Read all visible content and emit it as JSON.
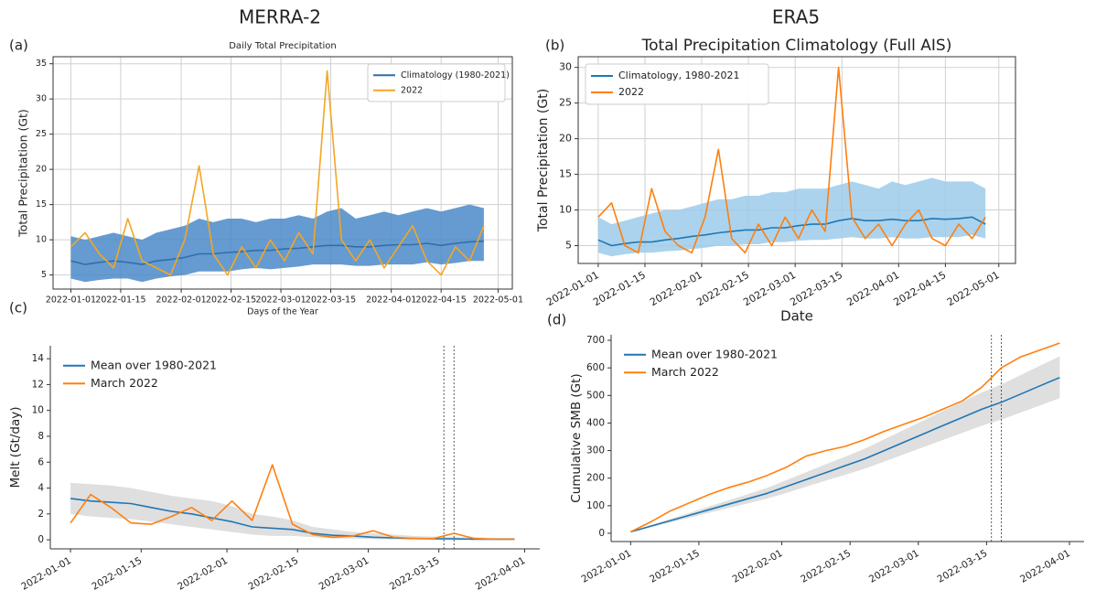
{
  "column_titles": [
    "MERRA-2",
    "ERA5"
  ],
  "chart_data": [
    {
      "type": "line",
      "panel": "(a)",
      "title": "Daily Total Precipitation",
      "xlabel": "Days of the Year",
      "ylabel": "Total Precipitation (Gt)",
      "x": [
        "2022-01-01",
        "2022-01-05",
        "2022-01-09",
        "2022-01-13",
        "2022-01-17",
        "2022-01-21",
        "2022-01-25",
        "2022-01-29",
        "2022-02-02",
        "2022-02-06",
        "2022-02-10",
        "2022-02-14",
        "2022-02-18",
        "2022-02-22",
        "2022-02-26",
        "2022-03-02",
        "2022-03-06",
        "2022-03-10",
        "2022-03-14",
        "2022-03-18",
        "2022-03-22",
        "2022-03-26",
        "2022-03-30",
        "2022-04-03",
        "2022-04-07",
        "2022-04-11",
        "2022-04-15",
        "2022-04-19",
        "2022-04-23",
        "2022-04-27"
      ],
      "series": [
        {
          "name": "Climatology (1980-2021)",
          "color": "#2f6fad",
          "values": [
            7,
            6.5,
            6.8,
            7,
            6.8,
            6.5,
            7,
            7.2,
            7.5,
            8,
            8,
            8.2,
            8.3,
            8.5,
            8.5,
            8.7,
            8.8,
            9,
            9.2,
            9.2,
            9,
            9,
            9.2,
            9.3,
            9.3,
            9.5,
            9.2,
            9.5,
            9.7,
            9.8
          ],
          "band": {
            "color": "#4a89c8",
            "lower": [
              4.5,
              4,
              4.3,
              4.5,
              4.5,
              4,
              4.5,
              4.8,
              5,
              5.5,
              5.5,
              5.5,
              5.8,
              6,
              5.8,
              6,
              6.2,
              6.5,
              6.5,
              6.5,
              6.3,
              6.3,
              6.5,
              6.5,
              6.5,
              6.8,
              6.5,
              6.7,
              7,
              7
            ],
            "upper": [
              10.5,
              10,
              10.5,
              11,
              10.5,
              10,
              11,
              11.5,
              12,
              13,
              12.5,
              13,
              13,
              12.5,
              13,
              13,
              13.5,
              13,
              14,
              14.5,
              13,
              13.5,
              14,
              13.5,
              14,
              14.5,
              14,
              14.5,
              15,
              14.5
            ]
          }
        },
        {
          "name": "2022",
          "color": "#f5a623",
          "values": [
            9,
            11,
            8,
            6,
            13,
            7,
            6,
            5,
            10,
            20.5,
            8,
            5,
            9,
            6,
            10,
            7,
            11,
            8,
            34,
            10,
            7,
            10,
            6,
            9,
            12,
            7,
            5,
            9,
            7,
            12
          ]
        }
      ],
      "xlim": [
        "2021-12-27",
        "2022-05-05"
      ],
      "xticks": [
        "2022-01-01",
        "2022-01-15",
        "2022-02-01",
        "2022-02-15",
        "2022-03-01",
        "2022-03-15",
        "2022-04-01",
        "2022-04-15",
        "2022-05-01"
      ],
      "ylim": [
        3,
        36
      ],
      "yticks": [
        5,
        10,
        15,
        20,
        25,
        30,
        35
      ],
      "grid": true,
      "legend": "upper right"
    },
    {
      "type": "line",
      "panel": "(b)",
      "title": "Total Precipitation Climatology (Full AIS)",
      "xlabel": "Date",
      "ylabel": "Total Precipitation (Gt)",
      "x": [
        "2022-01-01",
        "2022-01-05",
        "2022-01-09",
        "2022-01-13",
        "2022-01-17",
        "2022-01-21",
        "2022-01-25",
        "2022-01-29",
        "2022-02-02",
        "2022-02-06",
        "2022-02-10",
        "2022-02-14",
        "2022-02-18",
        "2022-02-22",
        "2022-02-26",
        "2022-03-02",
        "2022-03-06",
        "2022-03-10",
        "2022-03-14",
        "2022-03-18",
        "2022-03-22",
        "2022-03-26",
        "2022-03-30",
        "2022-04-03",
        "2022-04-07",
        "2022-04-11",
        "2022-04-15",
        "2022-04-19",
        "2022-04-23",
        "2022-04-27"
      ],
      "series": [
        {
          "name": "Climatology, 1980-2021",
          "color": "#1f77b4",
          "values": [
            5.8,
            5,
            5.3,
            5.5,
            5.5,
            5.8,
            6,
            6.3,
            6.5,
            6.8,
            7,
            7.2,
            7.2,
            7.5,
            7.5,
            7.8,
            8,
            8,
            8.5,
            8.8,
            8.5,
            8.5,
            8.7,
            8.5,
            8.5,
            8.8,
            8.7,
            8.8,
            9,
            8
          ],
          "band": {
            "color": "#9ccbea",
            "lower": [
              4,
              3.5,
              3.8,
              4,
              4,
              4.2,
              4.3,
              4.5,
              4.7,
              5,
              5,
              5.2,
              5.2,
              5.5,
              5.5,
              5.7,
              5.8,
              5.8,
              6,
              6.2,
              6,
              6,
              6.2,
              6,
              6,
              6.2,
              6.2,
              6.2,
              6.5,
              6
            ],
            "upper": [
              9,
              8,
              8.5,
              9,
              9.5,
              10,
              10,
              10.5,
              11,
              11.5,
              11.5,
              12,
              12,
              12.5,
              12.5,
              13,
              13,
              13,
              13.5,
              14,
              13.5,
              13,
              14,
              13.5,
              14,
              14.5,
              14,
              14,
              14,
              13
            ]
          }
        },
        {
          "name": "2022",
          "color": "#ff7f0e",
          "values": [
            9,
            11,
            5,
            4,
            13,
            7,
            5,
            4,
            9,
            18.5,
            6,
            4,
            8,
            5,
            9,
            6,
            10,
            7,
            30,
            9,
            6,
            8,
            5,
            8,
            10,
            6,
            5,
            8,
            6,
            9
          ]
        }
      ],
      "xlim": [
        "2021-12-26",
        "2022-05-06"
      ],
      "xticks": [
        "2022-01-01",
        "2022-01-15",
        "2022-02-01",
        "2022-02-15",
        "2022-03-01",
        "2022-03-15",
        "2022-04-01",
        "2022-04-15",
        "2022-05-01"
      ],
      "ylim": [
        2.5,
        31.5
      ],
      "yticks": [
        5,
        10,
        15,
        20,
        25,
        30
      ],
      "grid": true,
      "legend": "upper left"
    },
    {
      "type": "line",
      "panel": "(c)",
      "ylabel": "Melt (Gt/day)",
      "x": [
        "2022-01-01",
        "2022-01-05",
        "2022-01-09",
        "2022-01-13",
        "2022-01-17",
        "2022-01-21",
        "2022-01-25",
        "2022-01-29",
        "2022-02-02",
        "2022-02-06",
        "2022-02-10",
        "2022-02-14",
        "2022-02-18",
        "2022-02-22",
        "2022-02-26",
        "2022-03-02",
        "2022-03-06",
        "2022-03-10",
        "2022-03-14",
        "2022-03-18",
        "2022-03-22",
        "2022-03-26",
        "2022-03-30"
      ],
      "series": [
        {
          "name": "Mean over 1980-2021",
          "color": "#1f77b4",
          "values": [
            3.2,
            3.0,
            2.9,
            2.8,
            2.5,
            2.2,
            2.0,
            1.7,
            1.4,
            1.0,
            0.9,
            0.8,
            0.5,
            0.35,
            0.3,
            0.2,
            0.15,
            0.1,
            0.08,
            0.07,
            0.05,
            0.05,
            0.05
          ],
          "band": {
            "color": "#d9d9d9",
            "lower": [
              2.0,
              1.8,
              1.7,
              1.6,
              1.4,
              1.2,
              1.0,
              0.8,
              0.6,
              0.4,
              0.3,
              0.3,
              0.2,
              0.1,
              0.1,
              0.05,
              0.03,
              0.02,
              0.01,
              0.01,
              0,
              0,
              0
            ],
            "upper": [
              4.4,
              4.3,
              4.2,
              4.0,
              3.7,
              3.4,
              3.2,
              3.0,
              2.6,
              2.0,
              1.8,
              1.5,
              1.0,
              0.8,
              0.6,
              0.5,
              0.4,
              0.3,
              0.25,
              0.2,
              0.2,
              0.15,
              0.15
            ]
          }
        },
        {
          "name": "March 2022",
          "color": "#ff7f0e",
          "values": [
            1.3,
            3.5,
            2.5,
            1.3,
            1.2,
            1.8,
            2.5,
            1.5,
            3.0,
            1.5,
            5.8,
            1.2,
            0.4,
            0.2,
            0.3,
            0.7,
            0.2,
            0.1,
            0.1,
            0.5,
            0.1,
            0.05,
            0.05
          ]
        }
      ],
      "vlines": [
        "2022-03-16",
        "2022-03-18"
      ],
      "xlim": [
        "2021-12-28",
        "2022-04-04"
      ],
      "xticks": [
        "2022-01-01",
        "2022-01-15",
        "2022-02-01",
        "2022-02-15",
        "2022-03-01",
        "2022-03-15",
        "2022-04-01"
      ],
      "ylim": [
        -0.7,
        15
      ],
      "yticks": [
        0,
        2,
        4,
        6,
        8,
        10,
        12,
        14
      ],
      "grid": false,
      "legend": "upper left"
    },
    {
      "type": "line",
      "panel": "(d)",
      "ylabel": "Cumulative SMB (Gt)",
      "x": [
        "2022-01-01",
        "2022-01-05",
        "2022-01-09",
        "2022-01-13",
        "2022-01-17",
        "2022-01-21",
        "2022-01-25",
        "2022-01-29",
        "2022-02-02",
        "2022-02-06",
        "2022-02-10",
        "2022-02-14",
        "2022-02-18",
        "2022-02-22",
        "2022-02-26",
        "2022-03-02",
        "2022-03-06",
        "2022-03-10",
        "2022-03-14",
        "2022-03-18",
        "2022-03-22",
        "2022-03-26",
        "2022-03-30"
      ],
      "series": [
        {
          "name": "Mean over 1980-2021",
          "color": "#1f77b4",
          "values": [
            5,
            25,
            45,
            65,
            85,
            105,
            125,
            145,
            170,
            195,
            220,
            245,
            270,
            300,
            330,
            360,
            390,
            420,
            450,
            475,
            505,
            535,
            565
          ],
          "band": {
            "color": "#d9d9d9",
            "lower": [
              4,
              21,
              39,
              56,
              74,
              91,
              108,
              126,
              147,
              169,
              191,
              212,
              234,
              260,
              286,
              312,
              338,
              364,
              390,
              412,
              438,
              464,
              490
            ],
            "upper": [
              6,
              29,
              51,
              74,
              97,
              119,
              142,
              165,
              193,
              222,
              250,
              278,
              307,
              341,
              375,
              409,
              443,
              477,
              511,
              540,
              574,
              608,
              642
            ]
          }
        },
        {
          "name": "March 2022",
          "color": "#ff7f0e",
          "values": [
            5,
            40,
            80,
            110,
            140,
            165,
            185,
            210,
            240,
            280,
            300,
            315,
            340,
            370,
            395,
            420,
            450,
            480,
            530,
            600,
            640,
            665,
            690
          ]
        }
      ],
      "vlines": [
        "2022-03-16",
        "2022-03-18"
      ],
      "xlim": [
        "2021-12-28",
        "2022-04-04"
      ],
      "xticks": [
        "2022-01-01",
        "2022-01-15",
        "2022-02-01",
        "2022-02-15",
        "2022-03-01",
        "2022-03-15",
        "2022-04-01"
      ],
      "ylim": [
        -30,
        720
      ],
      "yticks": [
        0,
        100,
        200,
        300,
        400,
        500,
        600,
        700
      ],
      "grid": false,
      "legend": "upper left"
    }
  ]
}
